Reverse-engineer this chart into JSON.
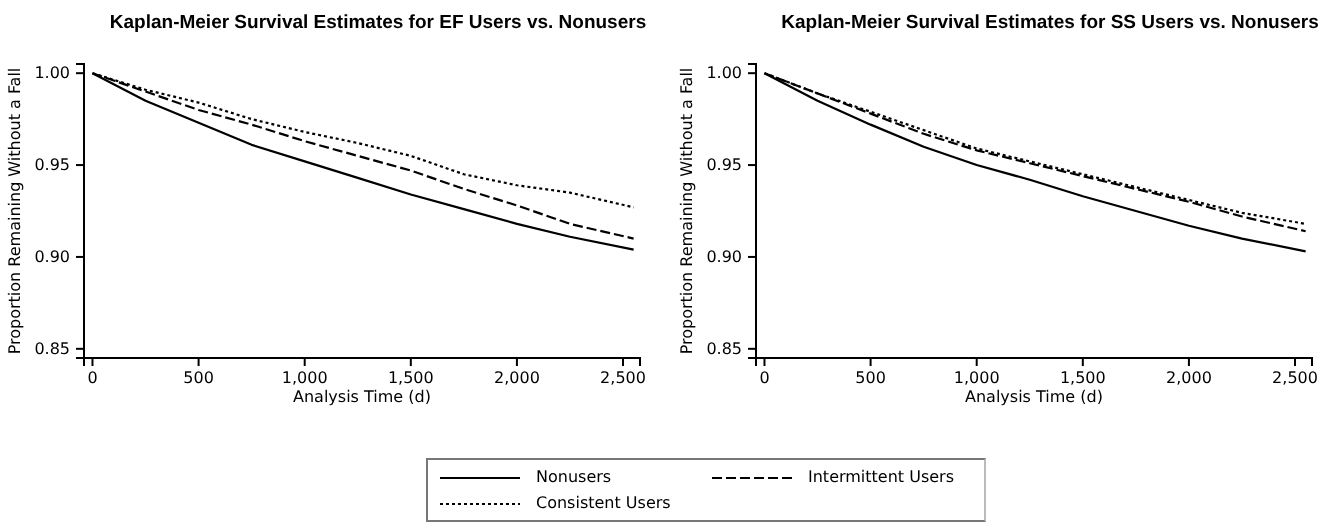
{
  "chart_data": [
    {
      "type": "line",
      "title": "Kaplan-Meier Survival Estimates for EF Users vs. Nonusers",
      "xlabel": "Analysis Time (d)",
      "ylabel": "Proportion Remaining Without a Fall",
      "x": [
        0,
        250,
        500,
        750,
        1000,
        1250,
        1500,
        1750,
        2000,
        2250,
        2550
      ],
      "xlim": [
        -40,
        2580
      ],
      "ylim": [
        0.845,
        1.005
      ],
      "xticks": [
        {
          "value": 0,
          "label": "0"
        },
        {
          "value": 500,
          "label": "500"
        },
        {
          "value": 1000,
          "label": "1,000"
        },
        {
          "value": 1500,
          "label": "1,500"
        },
        {
          "value": 2000,
          "label": "2,000"
        },
        {
          "value": 2500,
          "label": "2,500"
        }
      ],
      "yticks": [
        {
          "value": 0.85,
          "label": "0.85"
        },
        {
          "value": 0.9,
          "label": "0.90"
        },
        {
          "value": 0.95,
          "label": "0.95"
        },
        {
          "value": 1,
          "label": "1.00"
        }
      ],
      "grid": false,
      "legend": "bottom",
      "series": [
        {
          "name": "Nonusers",
          "color": "#000000",
          "line_style": "solid",
          "values": [
            1,
            0.985,
            0.973,
            0.961,
            0.952,
            0.943,
            0.934,
            0.926,
            0.918,
            0.911,
            0.904
          ]
        },
        {
          "name": "Intermittent Users",
          "color": "#000000",
          "line_style": "dashed",
          "values": [
            1,
            0.99,
            0.98,
            0.972,
            0.963,
            0.955,
            0.947,
            0.937,
            0.928,
            0.918,
            0.91
          ]
        },
        {
          "name": "Consistent Users",
          "color": "#000000",
          "line_style": "dotted",
          "values": [
            1,
            0.991,
            0.984,
            0.975,
            0.968,
            0.962,
            0.955,
            0.945,
            0.939,
            0.935,
            0.927
          ]
        }
      ]
    },
    {
      "type": "line",
      "title": "Kaplan-Meier Survival Estimates for SS Users vs. Nonusers",
      "xlabel": "Analysis Time (d)",
      "ylabel": "Proportion Remaining Without a Fall",
      "x": [
        0,
        250,
        500,
        750,
        1000,
        1250,
        1500,
        1750,
        2000,
        2250,
        2550
      ],
      "xlim": [
        -40,
        2580
      ],
      "ylim": [
        0.845,
        1.005
      ],
      "xticks": [
        {
          "value": 0,
          "label": "0"
        },
        {
          "value": 500,
          "label": "500"
        },
        {
          "value": 1000,
          "label": "1,000"
        },
        {
          "value": 1500,
          "label": "1,500"
        },
        {
          "value": 2000,
          "label": "2,000"
        },
        {
          "value": 2500,
          "label": "2,500"
        }
      ],
      "yticks": [
        {
          "value": 0.85,
          "label": "0.85"
        },
        {
          "value": 0.9,
          "label": "0.90"
        },
        {
          "value": 0.95,
          "label": "0.95"
        },
        {
          "value": 1,
          "label": "1.00"
        }
      ],
      "grid": false,
      "series": [
        {
          "color": "#000000",
          "line_style": "solid",
          "values": [
            1,
            0.985,
            0.972,
            0.96,
            0.95,
            0.942,
            0.933,
            0.925,
            0.917,
            0.91,
            0.903
          ]
        },
        {
          "color": "#000000",
          "line_style": "dashed",
          "values": [
            1,
            0.989,
            0.978,
            0.967,
            0.958,
            0.951,
            0.944,
            0.937,
            0.93,
            0.922,
            0.914
          ]
        },
        {
          "color": "#000000",
          "line_style": "dotted",
          "values": [
            1,
            0.989,
            0.979,
            0.969,
            0.959,
            0.952,
            0.945,
            0.938,
            0.931,
            0.924,
            0.918
          ]
        }
      ]
    }
  ]
}
